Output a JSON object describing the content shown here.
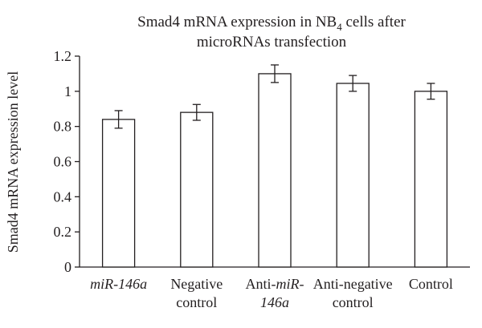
{
  "chart_data": {
    "type": "bar",
    "title": {
      "line1": {
        "pre": "Smad4 mRNA expression in NB",
        "sub": "4",
        "post": " cells after"
      },
      "line2": "microRNAs transfection"
    },
    "xlabel": "",
    "ylabel": "Smad4 mRNA expression level",
    "ylim": [
      0,
      1.2
    ],
    "yticks": [
      "0",
      "0.2",
      "0.4",
      "0.6",
      "0.8",
      "1",
      "1.2"
    ],
    "categories": [
      {
        "lines": [
          [
            {
              "text": "miR-146a",
              "italic": true
            }
          ]
        ]
      },
      {
        "lines": [
          [
            {
              "text": "Negative",
              "italic": false
            }
          ],
          [
            {
              "text": "control",
              "italic": false
            }
          ]
        ]
      },
      {
        "lines": [
          [
            {
              "text": "Anti-",
              "italic": false
            },
            {
              "text": "miR-",
              "italic": true
            }
          ],
          [
            {
              "text": "146a",
              "italic": true
            }
          ]
        ]
      },
      {
        "lines": [
          [
            {
              "text": "Anti-negative",
              "italic": false
            }
          ],
          [
            {
              "text": "control",
              "italic": false
            }
          ]
        ]
      },
      {
        "lines": [
          [
            {
              "text": "Control",
              "italic": false
            }
          ]
        ]
      }
    ],
    "values": [
      0.84,
      0.88,
      1.1,
      1.045,
      1.0
    ],
    "errors": [
      0.05,
      0.045,
      0.05,
      0.045,
      0.045
    ],
    "grid": false,
    "bar_fill": "#ffffff",
    "line_color": "#231f20"
  }
}
